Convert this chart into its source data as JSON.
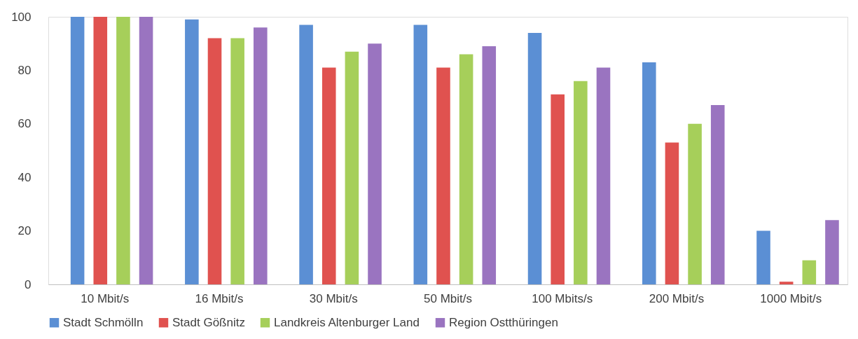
{
  "chart_data": {
    "type": "bar",
    "categories": [
      "10 Mbit/s",
      "16 Mbit/s",
      "30 Mbit/s",
      "50 Mbit/s",
      "100 Mbits/s",
      "200 Mbit/s",
      "1000 Mbit/s"
    ],
    "series": [
      {
        "name": "Stadt Schmölln",
        "color": "#5b8fd4",
        "values": [
          100,
          99,
          97,
          97,
          94,
          83,
          20
        ]
      },
      {
        "name": "Stadt Gößnitz",
        "color": "#e0524f",
        "values": [
          100,
          92,
          81,
          81,
          71,
          53,
          1
        ]
      },
      {
        "name": "Landkreis Altenburger Land",
        "color": "#a6cf5a",
        "values": [
          100,
          92,
          87,
          86,
          76,
          60,
          9
        ]
      },
      {
        "name": "Region Ostthüringen",
        "color": "#9a74c0",
        "values": [
          100,
          96,
          90,
          89,
          81,
          67,
          24
        ]
      }
    ],
    "ylim": [
      0,
      100
    ],
    "yticks": [
      0,
      20,
      40,
      60,
      80,
      100
    ],
    "grid": false,
    "legend": "bottom"
  }
}
